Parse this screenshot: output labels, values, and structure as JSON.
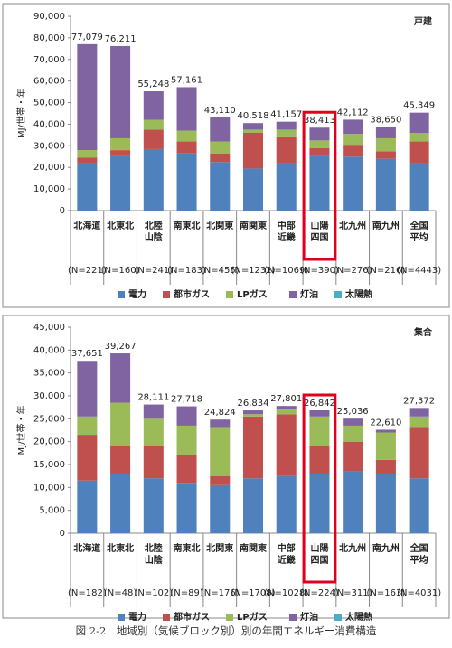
{
  "caption": "図 2-2　地域別（気候ブロック別）別の年間エネルギー消費構造",
  "chart_data": [
    {
      "type": "stacked_bar",
      "annotation": "戸建",
      "ylabel": "MJ/世帯・年",
      "categories": [
        [
          "北海道"
        ],
        [
          "北東北"
        ],
        [
          "北陸",
          "山陰"
        ],
        [
          "南東北"
        ],
        [
          "北関東"
        ],
        [
          "南関東"
        ],
        [
          "中部",
          "近畿"
        ],
        [
          "山陽",
          "四国"
        ],
        [
          "北九州"
        ],
        [
          "南九州"
        ],
        [
          "全国",
          "平均"
        ]
      ],
      "sample_sizes": [
        "(N=221)",
        "(N=160)",
        "(N=241)",
        "(N=183)",
        "(N=455)",
        "(N=1232)",
        "(N=1069)",
        "(N=390)",
        "(N=276)",
        "(N=216)",
        "(N=4443)"
      ],
      "series": [
        {
          "name": "電力",
          "color": "#4f81bd",
          "values": [
            22000,
            25500,
            28500,
            26500,
            22500,
            19500,
            22000,
            25500,
            25000,
            24000,
            22000
          ]
        },
        {
          "name": "都市ガス",
          "color": "#c0504d",
          "values": [
            2500,
            2500,
            9000,
            5500,
            4000,
            16500,
            12000,
            3500,
            5500,
            3500,
            10000
          ]
        },
        {
          "name": "LPガス",
          "color": "#9bbb59",
          "values": [
            3500,
            5500,
            4500,
            5000,
            5500,
            1500,
            3500,
            3500,
            5000,
            6000,
            4000
          ]
        },
        {
          "name": "灯油",
          "color": "#8064a2",
          "values": [
            49079,
            42711,
            13248,
            20161,
            11110,
            3018,
            3657,
            5913,
            6612,
            5150,
            9349
          ]
        },
        {
          "name": "太陽熱",
          "color": "#4bacc6",
          "values": [
            0,
            0,
            0,
            0,
            0,
            0,
            0,
            0,
            0,
            0,
            0
          ]
        }
      ],
      "totals": [
        77079,
        76211,
        55248,
        57161,
        43110,
        40518,
        41157,
        38413,
        42112,
        38650,
        45349
      ],
      "total_labels": [
        "77,079",
        "76,211",
        "55,248",
        "57,161",
        "43,110",
        "40,518",
        "41,157",
        "38,413",
        "42,112",
        "38,650",
        "45,349"
      ],
      "ylim": [
        0,
        90000
      ],
      "yticks": [
        0,
        {
          "value": 10000,
          "label": "10,000"
        },
        {
          "value": 20000,
          "label": "20,000"
        },
        {
          "value": 30000,
          "label": "30,000"
        },
        {
          "value": 40000,
          "label": "40,000"
        },
        {
          "value": 50000,
          "label": "50,000"
        },
        {
          "value": 60000,
          "label": "60,000"
        },
        {
          "value": 70000,
          "label": "70,000"
        },
        {
          "value": 80000,
          "label": "80,000"
        },
        {
          "value": 90000,
          "label": "90,000"
        }
      ],
      "highlight_category": 7,
      "highlight_color": "#e0001b",
      "legend": "bottom"
    },
    {
      "type": "stacked_bar",
      "annotation": "集合",
      "ylabel": "MJ/世帯・年",
      "categories": [
        [
          "北海道"
        ],
        [
          "北東北"
        ],
        [
          "北陸",
          "山陰"
        ],
        [
          "南東北"
        ],
        [
          "北関東"
        ],
        [
          "南関東"
        ],
        [
          "中部",
          "近畿"
        ],
        [
          "山陽",
          "四国"
        ],
        [
          "北九州"
        ],
        [
          "南九州"
        ],
        [
          "全国",
          "平均"
        ]
      ],
      "sample_sizes": [
        "(N=182)",
        "(N=48)",
        "(N=102)",
        "(N=89)",
        "(N=176)",
        "(N=1708)",
        "(N=1028)",
        "(N=224)",
        "(N=311)",
        "(N=163)",
        "(N=4031)"
      ],
      "series": [
        {
          "name": "電力",
          "color": "#4f81bd",
          "values": [
            11500,
            13000,
            12000,
            11000,
            10500,
            12000,
            12500,
            13000,
            13500,
            13000,
            12000
          ]
        },
        {
          "name": "都市ガス",
          "color": "#c0504d",
          "values": [
            10000,
            6000,
            7000,
            6000,
            2000,
            13500,
            13500,
            6000,
            6500,
            3000,
            11000
          ]
        },
        {
          "name": "LPガス",
          "color": "#9bbb59",
          "values": [
            4000,
            9500,
            6000,
            6500,
            10500,
            500,
            1000,
            6500,
            3500,
            6000,
            2500
          ]
        },
        {
          "name": "灯油",
          "color": "#8064a2",
          "values": [
            12151,
            10767,
            3111,
            4218,
            1824,
            834,
            801,
            1342,
            1536,
            610,
            1872
          ]
        },
        {
          "name": "太陽熱",
          "color": "#4bacc6",
          "values": [
            0,
            0,
            0,
            0,
            0,
            0,
            0,
            0,
            0,
            0,
            0
          ]
        }
      ],
      "totals": [
        37651,
        39267,
        28111,
        27718,
        24824,
        26834,
        27801,
        26842,
        25036,
        22610,
        27372
      ],
      "total_labels": [
        "37,651",
        "39,267",
        "28,111",
        "27,718",
        "24,824",
        "26,834",
        "27,801",
        "26,842",
        "25,036",
        "22,610",
        "27,372"
      ],
      "ylim": [
        0,
        45000
      ],
      "yticks": [
        0,
        {
          "value": 5000,
          "label": "5,000"
        },
        {
          "value": 10000,
          "label": "10,000"
        },
        {
          "value": 15000,
          "label": "15,000"
        },
        {
          "value": 20000,
          "label": "20,000"
        },
        {
          "value": 25000,
          "label": "25,000"
        },
        {
          "value": 30000,
          "label": "30,000"
        },
        {
          "value": 35000,
          "label": "35,000"
        },
        {
          "value": 40000,
          "label": "40,000"
        },
        {
          "value": 45000,
          "label": "45,000"
        }
      ],
      "highlight_category": 7,
      "highlight_color": "#e0001b",
      "legend": "bottom"
    }
  ]
}
